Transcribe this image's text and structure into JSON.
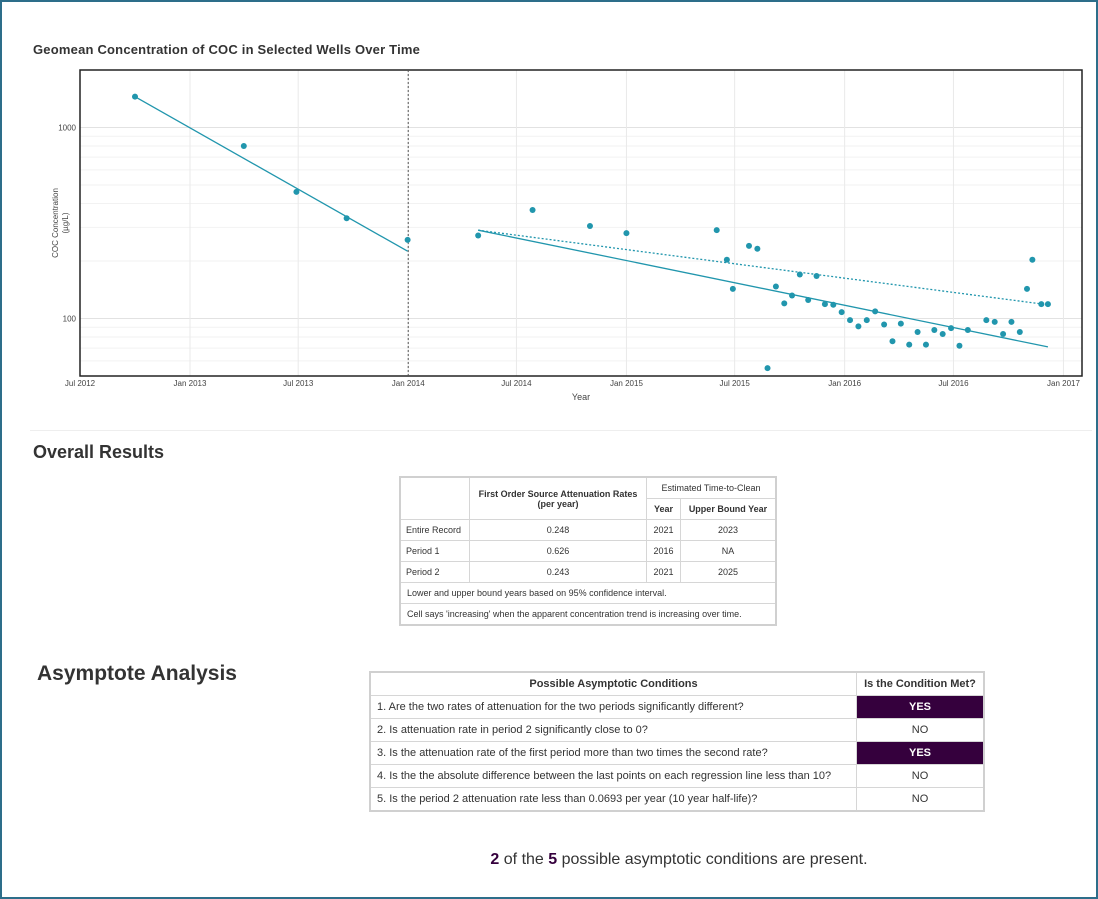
{
  "chart_data": {
    "type": "scatter",
    "title": "Geomean Concentration of COC in Selected Wells Over Time",
    "xlabel": "Year",
    "ylabel": "COC Concentration (µg/L)",
    "ylabel_lines": [
      "COC Concentration",
      "(µg/L)"
    ],
    "yscale": "log",
    "xlim": [
      "2012-07-01",
      "2017-02-01"
    ],
    "ylim": [
      50,
      2000
    ],
    "x_ticks": [
      {
        "date": "2012-07-01",
        "label": "Jul 2012"
      },
      {
        "date": "2013-01-01",
        "label": "Jan 2013"
      },
      {
        "date": "2013-07-01",
        "label": "Jul 2013"
      },
      {
        "date": "2014-01-01",
        "label": "Jan 2014"
      },
      {
        "date": "2014-07-01",
        "label": "Jul 2014"
      },
      {
        "date": "2015-01-01",
        "label": "Jan 2015"
      },
      {
        "date": "2015-07-01",
        "label": "Jul 2015"
      },
      {
        "date": "2016-01-01",
        "label": "Jan 2016"
      },
      {
        "date": "2016-07-01",
        "label": "Jul 2016"
      },
      {
        "date": "2017-01-01",
        "label": "Jan 2017"
      }
    ],
    "y_ticks": [
      {
        "value": 100,
        "label": "100"
      },
      {
        "value": 1000,
        "label": "1000"
      }
    ],
    "grid": true,
    "period_divider": "2014-01-01",
    "colors": {
      "series": "#2196ad",
      "frame": "#222222",
      "grid": "#e9e9e9"
    },
    "points": [
      [
        "2012-10-01",
        1450
      ],
      [
        "2013-04-01",
        800
      ],
      [
        "2013-06-28",
        460
      ],
      [
        "2013-09-20",
        335
      ],
      [
        "2013-12-31",
        258
      ],
      [
        "2014-04-28",
        272
      ],
      [
        "2014-07-28",
        370
      ],
      [
        "2014-11-01",
        305
      ],
      [
        "2015-01-01",
        280
      ],
      [
        "2015-06-01",
        290
      ],
      [
        "2015-06-18",
        203
      ],
      [
        "2015-06-28",
        143
      ],
      [
        "2015-07-25",
        240
      ],
      [
        "2015-08-08",
        232
      ],
      [
        "2015-08-25",
        55
      ],
      [
        "2015-09-08",
        147
      ],
      [
        "2015-09-22",
        120
      ],
      [
        "2015-10-05",
        132
      ],
      [
        "2015-10-18",
        170
      ],
      [
        "2015-11-01",
        125
      ],
      [
        "2015-11-15",
        167
      ],
      [
        "2015-11-29",
        119
      ],
      [
        "2015-12-13",
        118
      ],
      [
        "2015-12-27",
        108
      ],
      [
        "2016-01-10",
        98
      ],
      [
        "2016-01-24",
        91
      ],
      [
        "2016-02-07",
        98
      ],
      [
        "2016-02-21",
        109
      ],
      [
        "2016-03-07",
        93
      ],
      [
        "2016-03-21",
        76
      ],
      [
        "2016-04-04",
        94
      ],
      [
        "2016-04-18",
        73
      ],
      [
        "2016-05-02",
        85
      ],
      [
        "2016-05-16",
        73
      ],
      [
        "2016-05-30",
        87
      ],
      [
        "2016-06-13",
        83
      ],
      [
        "2016-06-27",
        89
      ],
      [
        "2016-07-11",
        72
      ],
      [
        "2016-07-25",
        87
      ],
      [
        "2016-08-25",
        98
      ],
      [
        "2016-09-08",
        96
      ],
      [
        "2016-09-22",
        83
      ],
      [
        "2016-10-06",
        96
      ],
      [
        "2016-10-20",
        85
      ],
      [
        "2016-11-01",
        143
      ],
      [
        "2016-11-10",
        203
      ],
      [
        "2016-11-25",
        119
      ],
      [
        "2016-12-06",
        119
      ]
    ],
    "trend_lines": [
      {
        "style": "solid",
        "points": [
          [
            "2012-10-01",
            1450
          ],
          [
            "2013-12-31",
            225
          ]
        ]
      },
      {
        "style": "solid",
        "points": [
          [
            "2014-04-28",
            290
          ],
          [
            "2016-12-06",
            71
          ]
        ]
      },
      {
        "style": "dotted",
        "points": [
          [
            "2014-04-28",
            290
          ],
          [
            "2016-12-06",
            118
          ]
        ]
      }
    ]
  },
  "results": {
    "title": "Overall Results",
    "header_rate": "First Order Source Attenuation Rates (per year)",
    "header_ttc": "Estimated Time-to-Clean",
    "header_year": "Year",
    "header_upper": "Upper Bound Year",
    "rows": [
      {
        "label": "Entire Record",
        "rate": "0.248",
        "year": "2021",
        "upper": "2023"
      },
      {
        "label": "Period 1",
        "rate": "0.626",
        "year": "2016",
        "upper": "NA"
      },
      {
        "label": "Period 2",
        "rate": "0.243",
        "year": "2021",
        "upper": "2025"
      }
    ],
    "note1": "Lower and upper bound years based on 95% confidence interval.",
    "note2": "Cell says 'increasing' when the apparent concentration trend is increasing over time."
  },
  "asymptote": {
    "title": "Asymptote Analysis",
    "col_conditions": "Possible Asymptotic Conditions",
    "col_met": "Is the Condition Met?",
    "rows": [
      {
        "question": "1. Are the two rates of attenuation for the two periods significantly different?",
        "answer": "YES"
      },
      {
        "question": "2. Is attenuation rate in period 2 significantly close to 0?",
        "answer": "NO"
      },
      {
        "question": "3. Is the attenuation rate of the first period more than two times the second rate?",
        "answer": "YES"
      },
      {
        "question": "4. Is the the absolute difference between the last points on each regression line less than 10?",
        "answer": "NO"
      },
      {
        "question": "5. Is the period 2 attenuation rate less than 0.0693 per year (10 year half-life)?",
        "answer": "NO"
      }
    ],
    "yes_color": "#35003d"
  },
  "summary": {
    "count": "2",
    "of_text": "of the",
    "total": "5",
    "suffix": "possible asymptotic conditions are present."
  }
}
